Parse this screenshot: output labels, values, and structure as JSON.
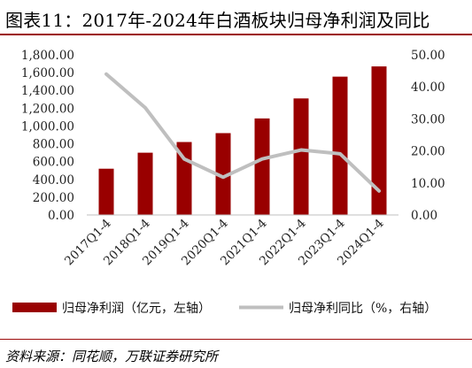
{
  "title": "图表11：2017年-2024年白酒板块归母净利润及同比",
  "source": "资料来源：同花顺，万联证券研究所",
  "colors": {
    "bar": "#990000",
    "line": "#bfbfbf",
    "rule": "#9c0a0a"
  },
  "chart_data": {
    "type": "bar",
    "categories": [
      "2017Q1-4",
      "2018Q1-4",
      "2019Q1-4",
      "2020Q1-4",
      "2021Q1-4",
      "2022Q1-4",
      "2023Q1-4",
      "2024Q1-4"
    ],
    "series": [
      {
        "name": "归母净利润（亿元，左轴）",
        "type": "bar",
        "axis": "left",
        "values": [
          520,
          700,
          820,
          920,
          1085,
          1310,
          1555,
          1670
        ]
      },
      {
        "name": "归母净利同比（%，右轴）",
        "type": "line",
        "axis": "right",
        "values": [
          44,
          33.5,
          17.5,
          11.8,
          17.5,
          20.3,
          19.1,
          7.5
        ]
      }
    ],
    "y_left": {
      "lim": [
        0,
        1800
      ],
      "ticks": [
        "0.00",
        "200.00",
        "400.00",
        "600.00",
        "800.00",
        "1,000.00",
        "1,200.00",
        "1,400.00",
        "1,600.00",
        "1,800.00"
      ]
    },
    "y_right": {
      "lim": [
        0,
        50
      ],
      "ticks": [
        "0.00",
        "10.00",
        "20.00",
        "30.00",
        "40.00",
        "50.00"
      ]
    },
    "legend_position": "bottom",
    "grid": false
  }
}
